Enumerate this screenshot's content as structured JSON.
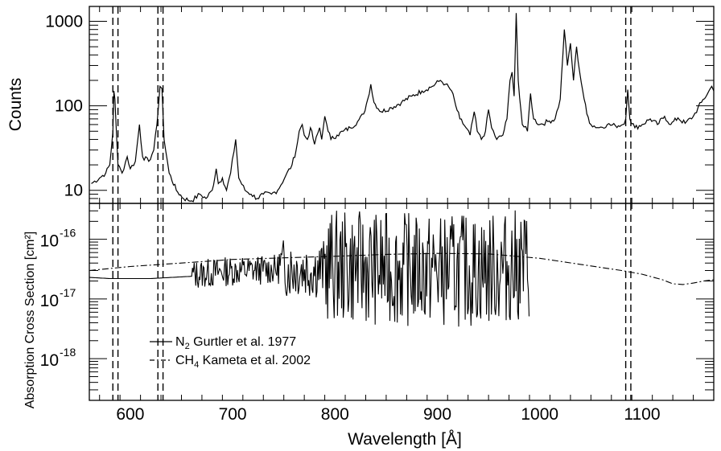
{
  "chart_data": [
    {
      "type": "line",
      "panel": "top",
      "title": "",
      "xlabel": "",
      "ylabel": "Counts",
      "yscale": "log",
      "xlim": [
        560,
        1170
      ],
      "ylim": [
        7,
        1500
      ],
      "x_ticks": [
        600,
        700,
        800,
        900,
        1000,
        1100
      ],
      "y_ticks": [
        10,
        100,
        1000
      ],
      "y_tick_labels": [
        "10",
        "100",
        "1000"
      ],
      "vlines": [
        583,
        588,
        627,
        632,
        1084,
        1089
      ],
      "series": [
        {
          "style": "solid",
          "points": [
            [
              562,
              12
            ],
            [
              570,
              14
            ],
            [
              576,
              16
            ],
            [
              580,
              20
            ],
            [
              583,
              50
            ],
            [
              584,
              150
            ],
            [
              585,
              120
            ],
            [
              588,
              20
            ],
            [
              592,
              16
            ],
            [
              597,
              25
            ],
            [
              600,
              18
            ],
            [
              605,
              22
            ],
            [
              609,
              60
            ],
            [
              612,
              25
            ],
            [
              618,
              22
            ],
            [
              623,
              30
            ],
            [
              626,
              60
            ],
            [
              629,
              170
            ],
            [
              631,
              160
            ],
            [
              633,
              40
            ],
            [
              638,
              16
            ],
            [
              645,
              10
            ],
            [
              652,
              8
            ],
            [
              660,
              7.5
            ],
            [
              668,
              9
            ],
            [
              674,
              8
            ],
            [
              680,
              10
            ],
            [
              684,
              18
            ],
            [
              686,
              12
            ],
            [
              690,
              14
            ],
            [
              694,
              10
            ],
            [
              698,
              16
            ],
            [
              703,
              40
            ],
            [
              706,
              14
            ],
            [
              712,
              10
            ],
            [
              718,
              9
            ],
            [
              724,
              8
            ],
            [
              730,
              9
            ],
            [
              738,
              9
            ],
            [
              744,
              10
            ],
            [
              752,
              15
            ],
            [
              758,
              20
            ],
            [
              762,
              30
            ],
            [
              765,
              50
            ],
            [
              768,
              60
            ],
            [
              770,
              45
            ],
            [
              773,
              40
            ],
            [
              776,
              55
            ],
            [
              780,
              35
            ],
            [
              785,
              55
            ],
            [
              787,
              40
            ],
            [
              790,
              75
            ],
            [
              792,
              60
            ],
            [
              796,
              40
            ],
            [
              802,
              45
            ],
            [
              808,
              50
            ],
            [
              815,
              55
            ],
            [
              822,
              65
            ],
            [
              828,
              80
            ],
            [
              832,
              120
            ],
            [
              835,
              180
            ],
            [
              838,
              110
            ],
            [
              845,
              85
            ],
            [
              855,
              95
            ],
            [
              865,
              110
            ],
            [
              875,
              130
            ],
            [
              885,
              150
            ],
            [
              895,
              170
            ],
            [
              903,
              200
            ],
            [
              908,
              180
            ],
            [
              914,
              150
            ],
            [
              918,
              100
            ],
            [
              922,
              70
            ],
            [
              928,
              55
            ],
            [
              932,
              45
            ],
            [
              936,
              85
            ],
            [
              939,
              50
            ],
            [
              943,
              40
            ],
            [
              947,
              50
            ],
            [
              950,
              90
            ],
            [
              953,
              55
            ],
            [
              958,
              40
            ],
            [
              964,
              45
            ],
            [
              968,
              70
            ],
            [
              971,
              200
            ],
            [
              973,
              250
            ],
            [
              975,
              130
            ],
            [
              977,
              1250
            ],
            [
              979,
              200
            ],
            [
              983,
              60
            ],
            [
              988,
              50
            ],
            [
              991,
              140
            ],
            [
              994,
              70
            ],
            [
              1000,
              60
            ],
            [
              1008,
              65
            ],
            [
              1015,
              70
            ],
            [
              1020,
              120
            ],
            [
              1024,
              800
            ],
            [
              1027,
              300
            ],
            [
              1030,
              550
            ],
            [
              1033,
              200
            ],
            [
              1036,
              500
            ],
            [
              1039,
              250
            ],
            [
              1042,
              150
            ],
            [
              1046,
              80
            ],
            [
              1050,
              60
            ],
            [
              1058,
              55
            ],
            [
              1066,
              60
            ],
            [
              1074,
              58
            ],
            [
              1081,
              60
            ],
            [
              1084,
              70
            ],
            [
              1086,
              155
            ],
            [
              1088,
              70
            ],
            [
              1093,
              55
            ],
            [
              1100,
              60
            ],
            [
              1108,
              70
            ],
            [
              1115,
              60
            ],
            [
              1122,
              75
            ],
            [
              1128,
              60
            ],
            [
              1135,
              72
            ],
            [
              1142,
              62
            ],
            [
              1150,
              75
            ],
            [
              1158,
              110
            ],
            [
              1164,
              140
            ],
            [
              1168,
              170
            ],
            [
              1170,
              150
            ]
          ]
        }
      ]
    },
    {
      "type": "line",
      "panel": "bottom",
      "title": "",
      "xlabel": "Wavelength [Å]",
      "ylabel": "Absorption Cross Section [cm²]",
      "yscale": "log",
      "xlim": [
        560,
        1170
      ],
      "ylim": [
        2e-19,
        4e-16
      ],
      "x_ticks": [
        600,
        700,
        800,
        900,
        1000,
        1100
      ],
      "x_tick_labels": [
        "600",
        "700",
        "800",
        "900",
        "1000",
        "1100"
      ],
      "y_ticks": [
        1e-18,
        1e-17,
        1e-16
      ],
      "y_tick_labels": [
        {
          "base": "10",
          "exp": "-18"
        },
        {
          "base": "10",
          "exp": "-17"
        },
        {
          "base": "10",
          "exp": "-16"
        }
      ],
      "vlines": [
        583,
        588,
        627,
        632,
        1084,
        1089
      ],
      "legend": {
        "position": "bottom-left",
        "entries": [
          {
            "style": "solid",
            "label": "N",
            "sub": "2",
            "text": "Gurtler et al. 1977"
          },
          {
            "style": "dashdot",
            "label": "CH",
            "sub": "4",
            "text": "Kameta et al. 2002"
          }
        ]
      },
      "series": [
        {
          "name": "N2 Gurtler et al. 1977",
          "style": "solid",
          "xrange": [
            560,
            990
          ],
          "base_points": [
            [
              560,
              2.3e-17
            ],
            [
              580,
              2.2e-17
            ],
            [
              620,
              2.2e-17
            ],
            [
              660,
              2.4e-17
            ],
            [
              700,
              2.8e-17
            ],
            [
              750,
              3e-17
            ],
            [
              800,
              2.8e-17
            ],
            [
              850,
              2.6e-17
            ],
            [
              900,
              2.4e-17
            ],
            [
              950,
              2.5e-17
            ],
            [
              990,
              3e-17
            ]
          ]
        },
        {
          "name": "CH4 Kameta et al. 2002",
          "style": "dashdot",
          "points": [
            [
              560,
              3e-17
            ],
            [
              600,
              3.5e-17
            ],
            [
              650,
              4e-17
            ],
            [
              700,
              4.6e-17
            ],
            [
              750,
              4.9e-17
            ],
            [
              800,
              5.2e-17
            ],
            [
              850,
              5.6e-17
            ],
            [
              900,
              5.8e-17
            ],
            [
              950,
              5.7e-17
            ],
            [
              1000,
              4.8e-17
            ],
            [
              1040,
              3.8e-17
            ],
            [
              1080,
              3e-17
            ],
            [
              1100,
              2.6e-17
            ],
            [
              1120,
              2.1e-17
            ],
            [
              1130,
              1.8e-17
            ],
            [
              1140,
              1.75e-17
            ],
            [
              1150,
              1.85e-17
            ],
            [
              1160,
              2e-17
            ],
            [
              1170,
              2.1e-17
            ]
          ]
        }
      ]
    }
  ]
}
